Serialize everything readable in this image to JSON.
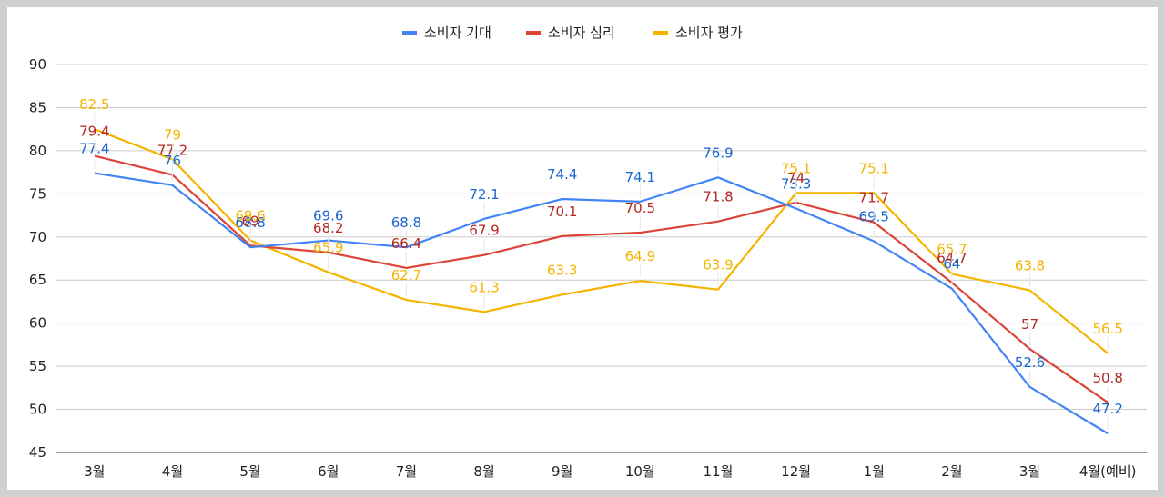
{
  "chart_data": {
    "type": "line",
    "title": "",
    "xlabel": "",
    "ylabel": "",
    "categories": [
      "3월",
      "4월",
      "5월",
      "6월",
      "7월",
      "8월",
      "9월",
      "10월",
      "11월",
      "12월",
      "1월",
      "2월",
      "3월",
      "4월(예비)"
    ],
    "ylim": [
      45,
      90
    ],
    "yticks": [
      45,
      50,
      55,
      60,
      65,
      70,
      75,
      80,
      85,
      90
    ],
    "grid": true,
    "legend_position": "top-center",
    "series": [
      {
        "name": "소비자 기대",
        "color": "#4285f4",
        "label_color": "#1967d2",
        "values": [
          77.4,
          76,
          68.8,
          69.6,
          68.8,
          72.1,
          74.4,
          74.1,
          76.9,
          73.3,
          69.5,
          64,
          52.6,
          47.2
        ]
      },
      {
        "name": "소비자 심리",
        "color": "#db4437",
        "label_color": "#b3261e",
        "values": [
          79.4,
          77.2,
          69.0,
          68.2,
          66.4,
          67.9,
          70.1,
          70.5,
          71.8,
          74,
          71.7,
          64.7,
          57,
          50.8
        ]
      },
      {
        "name": "소비자 평가",
        "color": "#f4b400",
        "label_color": "#f4b400",
        "values": [
          82.5,
          79,
          69.6,
          65.9,
          62.7,
          61.3,
          63.3,
          64.9,
          63.9,
          75.1,
          75.1,
          65.7,
          63.8,
          56.5
        ]
      }
    ]
  }
}
